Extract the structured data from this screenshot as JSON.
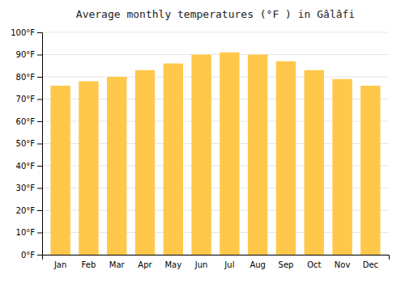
{
  "chart_data": {
    "type": "bar",
    "title": "Average monthly temperatures (°F ) in Gâlâfi",
    "categories": [
      "Jan",
      "Feb",
      "Mar",
      "Apr",
      "May",
      "Jun",
      "Jul",
      "Aug",
      "Sep",
      "Oct",
      "Nov",
      "Dec"
    ],
    "values": [
      76,
      78,
      80,
      83,
      86,
      90,
      91,
      90,
      87,
      83,
      79,
      76
    ],
    "color": "#FFC84A",
    "ylim": [
      0,
      100
    ],
    "yticks": [
      {
        "value": 0,
        "label": "0°F"
      },
      {
        "value": 10,
        "label": "10°F"
      },
      {
        "value": 20,
        "label": "20°F"
      },
      {
        "value": 30,
        "label": "30°F"
      },
      {
        "value": 40,
        "label": "40°F"
      },
      {
        "value": 50,
        "label": "50°F"
      },
      {
        "value": 60,
        "label": "60°F"
      },
      {
        "value": 70,
        "label": "70°F"
      },
      {
        "value": 80,
        "label": "80°F"
      },
      {
        "value": 90,
        "label": "90°F"
      },
      {
        "value": 100,
        "label": "100°F"
      }
    ],
    "grid": true
  }
}
